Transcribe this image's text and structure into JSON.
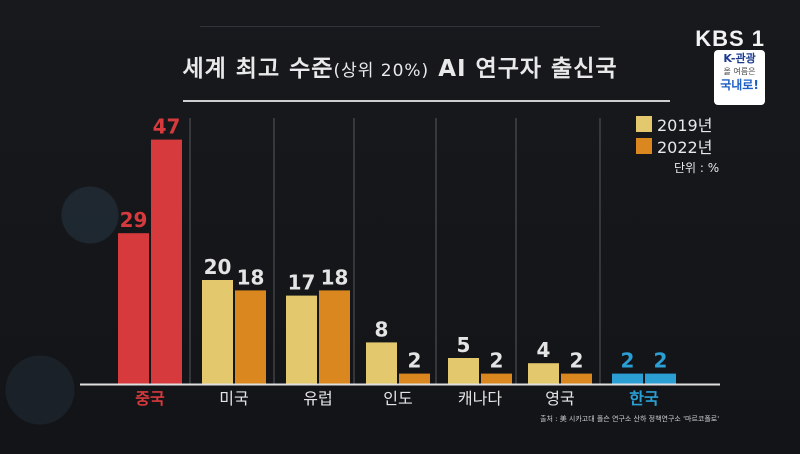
{
  "broadcaster": "KBS 1",
  "badge": {
    "line1": "K-관광",
    "line2": "올 여름은",
    "line3": "국내로!"
  },
  "title": {
    "main": "세계 최고 수준",
    "paren": "(상위 20%)",
    "rest": "AI 연구자 출신국"
  },
  "legend": {
    "unit": "단위 : %"
  },
  "source": "출처 : 美 시카고대 폴슨 연구소 산하 정책연구소 '마르코폴로'",
  "colors": {
    "series_2019": "#e3c86e",
    "series_2022": "#d9871e",
    "highlight_china": "#d63a3c",
    "highlight_korea": "#2b9fd4",
    "label_default": "#e4e4e4",
    "background": "#15171b"
  },
  "chart_data": {
    "type": "bar",
    "title": "세계 최고 수준(상위 20%) AI 연구자 출신국",
    "categories": [
      "중국",
      "미국",
      "유럽",
      "인도",
      "캐나다",
      "영국",
      "한국"
    ],
    "series": [
      {
        "name": "2019년",
        "values": [
          29,
          20,
          17,
          8,
          5,
          4,
          2
        ]
      },
      {
        "name": "2022년",
        "values": [
          47,
          18,
          18,
          2,
          2,
          2,
          2
        ]
      }
    ],
    "ylim": [
      0,
      50
    ],
    "highlighted_categories": {
      "중국": "highlight_china",
      "한국": "highlight_korea"
    },
    "grid": false,
    "legend_position": "top-right"
  }
}
